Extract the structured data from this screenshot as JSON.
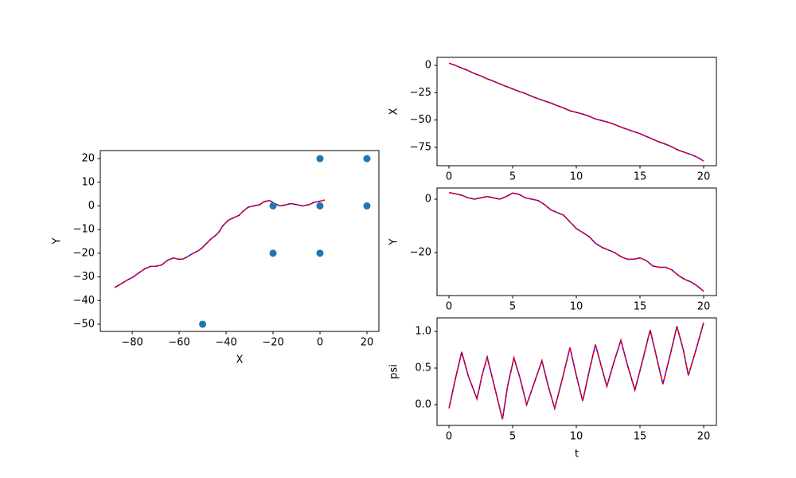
{
  "chart_data": [
    {
      "type": "line",
      "xlabel": "X",
      "ylabel": "Y",
      "x": [
        2,
        0,
        -2.5,
        -4.8,
        -7.5,
        -9.7,
        -12.3,
        -14.5,
        -17,
        -19.3,
        -21.5,
        -23.8,
        -25.8,
        -28.3,
        -30.5,
        -32.5,
        -34.5,
        -36.8,
        -39,
        -41.5,
        -43,
        -44.5,
        -46.5,
        -49,
        -50.5,
        -52,
        -54,
        -56.5,
        -58.5,
        -60.5,
        -62.5,
        -65,
        -67.5,
        -70,
        -72,
        -74.5,
        -77.5,
        -79.5,
        -81.5,
        -84,
        -87.5
      ],
      "series": [
        {
          "color": "#0000ff",
          "style": "solid",
          "values": [
            2.5,
            2,
            1.5,
            0.5,
            0,
            0.5,
            1,
            0.5,
            0,
            1,
            2.3,
            1.8,
            0.5,
            0,
            -0.5,
            -2,
            -4,
            -5,
            -6,
            -8.5,
            -11,
            -12.5,
            -14,
            -16.5,
            -18,
            -19,
            -20,
            -21.5,
            -22.5,
            -22.5,
            -22,
            -23,
            -25,
            -25.5,
            -25.5,
            -26.5,
            -28.5,
            -30,
            -31,
            -32.5,
            -34.5
          ]
        },
        {
          "color": "#ff0000",
          "style": "dashed",
          "values": [
            2.5,
            2,
            1.5,
            0.5,
            0,
            0.5,
            1,
            0.5,
            0,
            1,
            2.3,
            1.8,
            0.5,
            0,
            -0.5,
            -2,
            -4,
            -5,
            -6,
            -8.5,
            -11,
            -12.5,
            -14,
            -16.5,
            -18,
            -19,
            -20,
            -21.5,
            -22.5,
            -22.5,
            -22,
            -23,
            -25,
            -25.5,
            -25.5,
            -26.5,
            -28.5,
            -30,
            -31,
            -32.5,
            -34.5
          ]
        }
      ],
      "points": {
        "color": "#1f77b4",
        "x": [
          0,
          20,
          -20,
          0,
          20,
          -20,
          0,
          -50
        ],
        "values": [
          20,
          20,
          0,
          0,
          0,
          -20,
          -20,
          -50
        ]
      },
      "xlim": [
        -93.6,
        25.1
      ],
      "ylim": [
        -53.05,
        23.4
      ],
      "xticks": [
        {
          "value": -80,
          "label": "−80"
        },
        {
          "value": -60,
          "label": "−60"
        },
        {
          "value": -40,
          "label": "−40"
        },
        {
          "value": -20,
          "label": "−20"
        },
        0,
        20
      ],
      "yticks": [
        {
          "value": -50,
          "label": "−50"
        },
        {
          "value": -40,
          "label": "−40"
        },
        {
          "value": -30,
          "label": "−30"
        },
        {
          "value": -20,
          "label": "−20"
        },
        {
          "value": -10,
          "label": "−10"
        },
        0,
        10,
        20
      ]
    },
    {
      "type": "line",
      "ylabel": "X",
      "x": [
        0,
        0.5,
        1,
        1.5,
        2,
        2.5,
        3,
        3.5,
        4,
        4.5,
        5,
        5.5,
        6,
        6.5,
        7,
        7.5,
        8,
        8.5,
        9,
        9.5,
        10,
        10.5,
        11,
        11.5,
        12,
        12.5,
        13,
        13.5,
        14,
        14.5,
        15,
        15.5,
        16,
        16.5,
        17,
        17.5,
        18,
        18.5,
        19,
        19.5,
        20
      ],
      "series": [
        {
          "color": "#0000ff",
          "style": "solid",
          "values": [
            2,
            0,
            -2.5,
            -4.8,
            -7.5,
            -9.7,
            -12.3,
            -14.5,
            -17,
            -19.3,
            -21.5,
            -23.8,
            -25.8,
            -28.3,
            -30.5,
            -32.5,
            -34.5,
            -36.8,
            -39,
            -41.5,
            -43,
            -44.5,
            -46.5,
            -49,
            -50.5,
            -52,
            -54,
            -56.5,
            -58.5,
            -60.5,
            -62.5,
            -65,
            -67.5,
            -70,
            -72,
            -74.5,
            -77.5,
            -79.5,
            -81.5,
            -84,
            -87.5
          ]
        },
        {
          "color": "#ff0000",
          "style": "dashed",
          "values": [
            2,
            0,
            -2.5,
            -4.8,
            -7.5,
            -9.7,
            -12.3,
            -14.5,
            -17,
            -19.3,
            -21.5,
            -23.8,
            -25.8,
            -28.3,
            -30.5,
            -32.5,
            -34.5,
            -36.8,
            -39,
            -41.5,
            -43,
            -44.5,
            -46.5,
            -49,
            -50.5,
            -52,
            -54,
            -56.5,
            -58.5,
            -60.5,
            -62.5,
            -65,
            -67.5,
            -70,
            -72,
            -74.5,
            -77.5,
            -79.5,
            -81.5,
            -84,
            -87.5
          ]
        }
      ],
      "xlim": [
        -0.94,
        21
      ],
      "ylim": [
        -91.75,
        7.3
      ],
      "xticks": [
        0,
        5,
        10,
        15,
        20
      ],
      "yticks": [
        {
          "value": -75,
          "label": "−75"
        },
        {
          "value": -50,
          "label": "−50"
        },
        {
          "value": -25,
          "label": "−25"
        },
        0
      ]
    },
    {
      "type": "line",
      "ylabel": "Y",
      "x": [
        0,
        0.5,
        1,
        1.5,
        2,
        2.5,
        3,
        3.5,
        4,
        4.5,
        5,
        5.5,
        6,
        6.5,
        7,
        7.5,
        8,
        8.5,
        9,
        9.5,
        10,
        10.5,
        11,
        11.5,
        12,
        12.5,
        13,
        13.5,
        14,
        14.5,
        15,
        15.5,
        16,
        16.5,
        17,
        17.5,
        18,
        18.5,
        19,
        19.5,
        20
      ],
      "series": [
        {
          "color": "#0000ff",
          "style": "solid",
          "values": [
            2.5,
            2,
            1.5,
            0.5,
            0,
            0.5,
            1,
            0.5,
            0,
            1,
            2.3,
            1.8,
            0.5,
            0,
            -0.5,
            -2,
            -4,
            -5,
            -6,
            -8.5,
            -11,
            -12.5,
            -14,
            -16.5,
            -18,
            -19,
            -20,
            -21.5,
            -22.5,
            -22.5,
            -22,
            -23,
            -25,
            -25.5,
            -25.5,
            -26.5,
            -28.5,
            -30,
            -31,
            -32.5,
            -34.5
          ]
        },
        {
          "color": "#ff0000",
          "style": "dashed",
          "values": [
            2.5,
            2,
            1.5,
            0.5,
            0,
            0.5,
            1,
            0.5,
            0,
            1,
            2.3,
            1.8,
            0.5,
            0,
            -0.5,
            -2,
            -4,
            -5,
            -6,
            -8.5,
            -11,
            -12.5,
            -14,
            -16.5,
            -18,
            -19,
            -20,
            -21.5,
            -22.5,
            -22.5,
            -22,
            -23,
            -25,
            -25.5,
            -25.5,
            -26.5,
            -28.5,
            -30,
            -31,
            -32.5,
            -34.5
          ]
        }
      ],
      "xlim": [
        -0.94,
        21
      ],
      "ylim": [
        -36.1,
        4.18
      ],
      "xticks": [
        0,
        5,
        10,
        15,
        20
      ],
      "yticks": [
        {
          "value": -20,
          "label": "−20"
        },
        0
      ]
    },
    {
      "type": "line",
      "xlabel": "t",
      "ylabel": "psi",
      "x": [
        0,
        0.5,
        1.0,
        1.5,
        2.2,
        2.6,
        3.0,
        3.5,
        4.2,
        4.6,
        5.1,
        5.6,
        6.1,
        6.7,
        7.3,
        7.8,
        8.3,
        8.9,
        9.5,
        10.0,
        10.5,
        11.0,
        11.5,
        12.0,
        12.4,
        12.9,
        13.5,
        14.0,
        14.6,
        15.2,
        15.8,
        16.3,
        16.8,
        17.4,
        17.9,
        18.4,
        18.8,
        19.4,
        20.0
      ],
      "series": [
        {
          "color": "#0000ff",
          "style": "solid",
          "values": [
            -0.05,
            0.35,
            0.72,
            0.4,
            0.08,
            0.4,
            0.65,
            0.3,
            -0.2,
            0.25,
            0.64,
            0.35,
            0.0,
            0.3,
            0.6,
            0.25,
            -0.05,
            0.35,
            0.78,
            0.4,
            0.05,
            0.45,
            0.82,
            0.5,
            0.25,
            0.55,
            0.88,
            0.55,
            0.2,
            0.6,
            1.02,
            0.65,
            0.28,
            0.7,
            1.07,
            0.75,
            0.4,
            0.75,
            1.12
          ]
        },
        {
          "color": "#ff0000",
          "style": "dashed",
          "values": [
            -0.05,
            0.35,
            0.72,
            0.4,
            0.08,
            0.4,
            0.65,
            0.3,
            -0.2,
            0.25,
            0.64,
            0.35,
            0.0,
            0.3,
            0.6,
            0.25,
            -0.05,
            0.35,
            0.78,
            0.4,
            0.05,
            0.45,
            0.82,
            0.5,
            0.25,
            0.55,
            0.88,
            0.55,
            0.2,
            0.6,
            1.02,
            0.65,
            0.28,
            0.7,
            1.07,
            0.75,
            0.4,
            0.75,
            1.12
          ]
        }
      ],
      "xlim": [
        -0.94,
        21
      ],
      "ylim": [
        -0.283,
        1.185
      ],
      "xticks": [
        0,
        5,
        10,
        15,
        20
      ],
      "yticks": [
        {
          "value": 0,
          "label": "0.0"
        },
        0.5,
        {
          "value": 1,
          "label": "1.0"
        }
      ]
    }
  ]
}
